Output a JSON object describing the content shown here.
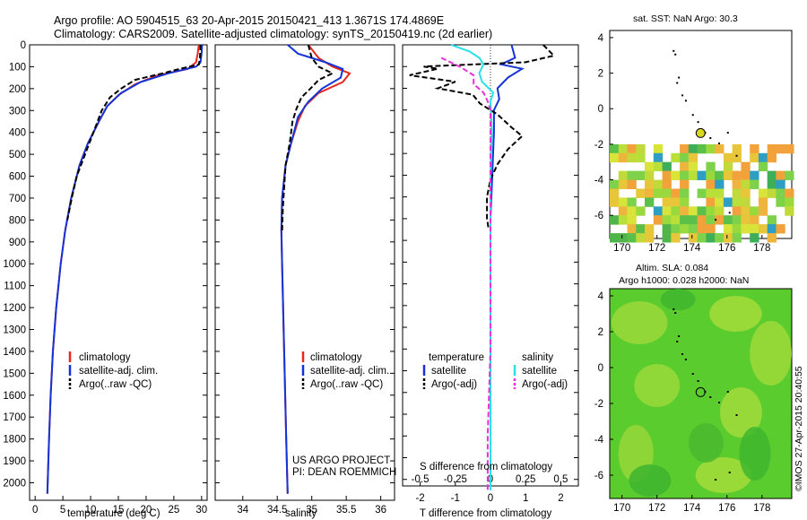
{
  "header": {
    "line1": "Argo profile: AO 5904515_63 20-Apr-2015 20150421_413 1.3671S 174.4869E",
    "line2": "Climatology: CARS2009. Satellite-adjusted climatology: synTS_20150419.nc (2d earlier)"
  },
  "side_credit": "©IMOS 27-Apr-2015 20:40:55",
  "colors": {
    "climatology": "#e8271e",
    "satellite": "#1434d8",
    "argo": "#000000",
    "sal_satellite": "#29e2e8",
    "sal_argo": "#e632d6"
  },
  "chart_data": [
    {
      "id": "temperature",
      "type": "line",
      "xlabel": "temperature (deg C)",
      "xlim": [
        -1,
        31
      ],
      "ylim": [
        2080,
        0
      ],
      "x_ticks": [
        0,
        5,
        10,
        15,
        20,
        25,
        30
      ],
      "y_ticks": [
        0,
        100,
        200,
        300,
        400,
        500,
        600,
        700,
        800,
        900,
        1000,
        1100,
        1200,
        1300,
        1400,
        1500,
        1600,
        1700,
        1800,
        1900,
        2000
      ],
      "y_tick_labels": [
        "0",
        "100",
        "200",
        "300",
        "400",
        "500",
        "600",
        "700",
        "800",
        "900",
        "1000",
        "1100",
        "1200",
        "1300",
        "1400",
        "1500",
        "1600",
        "1700",
        "1800",
        "1900",
        "2000"
      ],
      "legend": [
        "climatology",
        "satellite-adj. clim.",
        "Argo(..raw -QC)"
      ],
      "series": [
        {
          "name": "climatology",
          "style": "solid",
          "depth": [
            0,
            40,
            80,
            110,
            140,
            180,
            230,
            280,
            350,
            450,
            550,
            700,
            850,
            1000,
            1200,
            1400,
            1600,
            1800,
            2050
          ],
          "value": [
            29.5,
            29.3,
            29.0,
            27.5,
            22,
            18,
            15,
            13,
            11.5,
            9.5,
            8,
            6.5,
            5.4,
            4.6,
            3.8,
            3.2,
            2.8,
            2.5,
            2.2
          ]
        },
        {
          "name": "satellite-adj. clim.",
          "style": "solid",
          "depth": [
            0,
            40,
            80,
            100,
            130,
            170,
            220,
            280,
            350,
            450,
            550,
            700,
            850,
            1000,
            1200,
            1400,
            1600,
            1800,
            2050
          ],
          "value": [
            30.1,
            30,
            29.8,
            29,
            24,
            19,
            15.5,
            13,
            11.5,
            9.5,
            8,
            6.5,
            5.4,
            4.6,
            3.8,
            3.2,
            2.8,
            2.5,
            2.2
          ]
        },
        {
          "name": "Argo(..raw -QC)",
          "style": "dashed",
          "depth": [
            0,
            60,
            90,
            110,
            130,
            160,
            200,
            240,
            300,
            400,
            500,
            600,
            700,
            800
          ],
          "value": [
            29.8,
            29.7,
            29.5,
            26,
            23,
            18,
            15.5,
            13.5,
            12,
            10.5,
            9,
            7.5,
            6.6,
            5.8
          ]
        }
      ]
    },
    {
      "id": "salinity",
      "type": "line",
      "xlabel": "salinity",
      "xlim": [
        33.6,
        36.2
      ],
      "ylim": [
        2080,
        0
      ],
      "x_ticks": [
        34,
        34.5,
        35,
        35.5,
        36
      ],
      "x_tick_labels": [
        "34",
        "34.5",
        "35",
        "35.5",
        "36"
      ],
      "legend": [
        "climatology",
        "satellite-adj. clim.",
        "Argo(..raw -QC)"
      ],
      "annotation": [
        "US ARGO PROJECT",
        "PI: DEAN ROEMMICH"
      ],
      "series": [
        {
          "name": "climatology",
          "style": "solid",
          "depth": [
            0,
            60,
            100,
            130,
            170,
            220,
            280,
            350,
            450,
            550,
            700,
            850,
            1000,
            1400,
            1800,
            2050
          ],
          "value": [
            34.95,
            35.1,
            35.3,
            35.55,
            35.45,
            35.1,
            34.9,
            34.8,
            34.7,
            34.62,
            34.57,
            34.56,
            34.57,
            34.6,
            34.63,
            34.65
          ]
        },
        {
          "name": "satellite-adj. clim.",
          "style": "solid",
          "depth": [
            0,
            40,
            80,
            110,
            150,
            200,
            260,
            330,
            450,
            550,
            700,
            850,
            1000,
            1400,
            1800,
            2050
          ],
          "value": [
            34.65,
            34.8,
            35.2,
            35.45,
            35.42,
            35.15,
            34.95,
            34.8,
            34.7,
            34.62,
            34.57,
            34.56,
            34.57,
            34.6,
            34.63,
            34.65
          ]
        },
        {
          "name": "Argo(..raw -QC)",
          "style": "dashed",
          "depth": [
            0,
            60,
            100,
            130,
            160,
            200,
            240,
            290,
            350,
            450,
            550,
            650,
            750,
            850
          ],
          "value": [
            34.95,
            35.0,
            35.1,
            35.3,
            35.1,
            34.98,
            34.85,
            34.78,
            34.72,
            34.68,
            34.62,
            34.6,
            34.58,
            34.57
          ]
        }
      ]
    },
    {
      "id": "difference",
      "type": "line",
      "xlabel": "T difference from climatology",
      "top_label": "S difference from climatology",
      "xlim": [
        -2.5,
        2.5
      ],
      "ylim": [
        2080,
        0
      ],
      "x_ticks": [
        -2,
        -1,
        0,
        1,
        2
      ],
      "s_ticks": [
        -0.5,
        -0.25,
        0,
        0.25,
        0.5
      ],
      "s_tick_labels": [
        "-0.5",
        "-0.25",
        "0",
        "0.25",
        "0.5"
      ],
      "legend": {
        "temperature_title": "temperature",
        "salinity_title": "salinity",
        "satellite": "satellite",
        "argo": "Argo(-adj)"
      },
      "series": [
        {
          "name": "T satellite",
          "style": "solid",
          "depth": [
            0,
            60,
            90,
            110,
            150,
            200,
            250,
            300,
            400,
            600,
            800,
            1000,
            1400,
            1800,
            2050
          ],
          "value": [
            0.6,
            0.7,
            0.3,
            0.9,
            0.5,
            0.2,
            0.25,
            0.1,
            0.1,
            0.05,
            0.0,
            0.0,
            0.0,
            0.0,
            0.0
          ]
        },
        {
          "name": "T Argo(-adj)",
          "style": "dashed",
          "depth": [
            0,
            50,
            80,
            100,
            110,
            140,
            170,
            200,
            230,
            270,
            320,
            380,
            420,
            480,
            550,
            620,
            700,
            800,
            850
          ],
          "value": [
            1.5,
            1.8,
            1.0,
            -1.9,
            -1.5,
            -2.3,
            -1.0,
            -1.5,
            -0.5,
            -0.3,
            0.2,
            0.6,
            0.9,
            0.5,
            0.2,
            0.0,
            -0.1,
            -0.1,
            -0.05
          ]
        },
        {
          "name": "S satellite",
          "style": "solid",
          "depth": [
            0,
            30,
            60,
            90,
            130,
            170,
            220,
            260,
            400,
            600,
            800,
            1000,
            1400,
            1800,
            2050
          ],
          "value": [
            -0.28,
            -0.15,
            -0.08,
            -0.05,
            -0.08,
            -0.06,
            0.02,
            0.0,
            0.01,
            0.0,
            0.0,
            0.0,
            0.0,
            0.0,
            0.0
          ]
        },
        {
          "name": "S Argo(-adj)",
          "style": "dashed",
          "depth": [
            60,
            100,
            140,
            180,
            220,
            260,
            300,
            400,
            600,
            800,
            1000,
            1400,
            1800,
            2050
          ],
          "value": [
            -0.35,
            -0.22,
            -0.12,
            -0.12,
            -0.05,
            -0.02,
            0.0,
            0.0,
            0.0,
            0.0,
            0.0,
            0.0,
            -0.02,
            -0.02
          ]
        }
      ]
    },
    {
      "id": "sst_map",
      "type": "heatmap",
      "title": "sat. SST: NaN Argo: 30.3",
      "xlim": [
        169.3,
        179.7
      ],
      "ylim": [
        -7.3,
        4.4
      ],
      "x_ticks": [
        170,
        172,
        174,
        176,
        178
      ],
      "y_ticks": [
        4,
        2,
        0,
        -2,
        -4,
        -6
      ],
      "y_tick_labels": [
        "4",
        "2",
        "0",
        "-2",
        "-4",
        "-6"
      ],
      "marker": {
        "lon": 174.49,
        "lat": -1.37
      }
    },
    {
      "id": "sla_map",
      "type": "heatmap",
      "title_line1": "Altim. SLA: 0.084",
      "title_line2": "Argo h1000: 0.028 h2000: NaN",
      "xlim": [
        169.3,
        179.7
      ],
      "ylim": [
        -7.3,
        4.4
      ],
      "x_ticks": [
        170,
        172,
        174,
        176,
        178
      ],
      "y_ticks": [
        4,
        2,
        0,
        -2,
        -4,
        -6
      ],
      "y_tick_labels": [
        "4",
        "2",
        "0",
        "-2",
        "-4",
        "-6"
      ],
      "marker": {
        "lon": 174.49,
        "lat": -1.37
      }
    }
  ]
}
